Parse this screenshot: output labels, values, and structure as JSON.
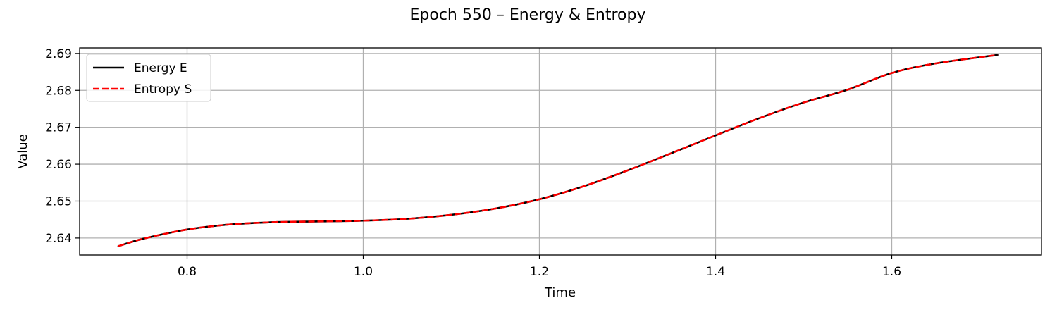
{
  "chart_data": {
    "type": "line",
    "title": "Epoch 550 – Energy & Entropy",
    "xlabel": "Time",
    "ylabel": "Value",
    "xlim": [
      0.678,
      1.77
    ],
    "ylim": [
      2.6354,
      2.6915
    ],
    "xticks": [
      0.8,
      1.0,
      1.2,
      1.4,
      1.6
    ],
    "xtick_labels": [
      "0.8",
      "1.0",
      "1.2",
      "1.4",
      "1.6"
    ],
    "yticks": [
      2.64,
      2.65,
      2.66,
      2.67,
      2.68,
      2.69
    ],
    "ytick_labels": [
      "2.64",
      "2.65",
      "2.66",
      "2.67",
      "2.68",
      "2.69"
    ],
    "grid": true,
    "legend_position": "top-left",
    "x": [
      0.722,
      0.75,
      0.8,
      0.85,
      0.9,
      0.95,
      1.0,
      1.05,
      1.1,
      1.15,
      1.2,
      1.25,
      1.3,
      1.35,
      1.4,
      1.45,
      1.5,
      1.55,
      1.6,
      1.65,
      1.72
    ],
    "series": [
      {
        "name": "Energy E",
        "color": "#000000",
        "style": "solid",
        "values": [
          2.6378,
          2.6398,
          2.6423,
          2.6437,
          2.6443,
          2.6445,
          2.6447,
          2.6452,
          2.6463,
          2.648,
          2.6505,
          2.654,
          2.6583,
          2.663,
          2.6678,
          2.6725,
          2.6767,
          2.6802,
          2.6847,
          2.6873,
          2.6896
        ]
      },
      {
        "name": "Entropy S",
        "color": "#ff0000",
        "style": "dashed",
        "values": [
          2.6378,
          2.6398,
          2.6423,
          2.6437,
          2.6443,
          2.6445,
          2.6447,
          2.6452,
          2.6463,
          2.648,
          2.6505,
          2.654,
          2.6583,
          2.663,
          2.6678,
          2.6725,
          2.6767,
          2.6802,
          2.6847,
          2.6873,
          2.6896
        ]
      }
    ]
  }
}
